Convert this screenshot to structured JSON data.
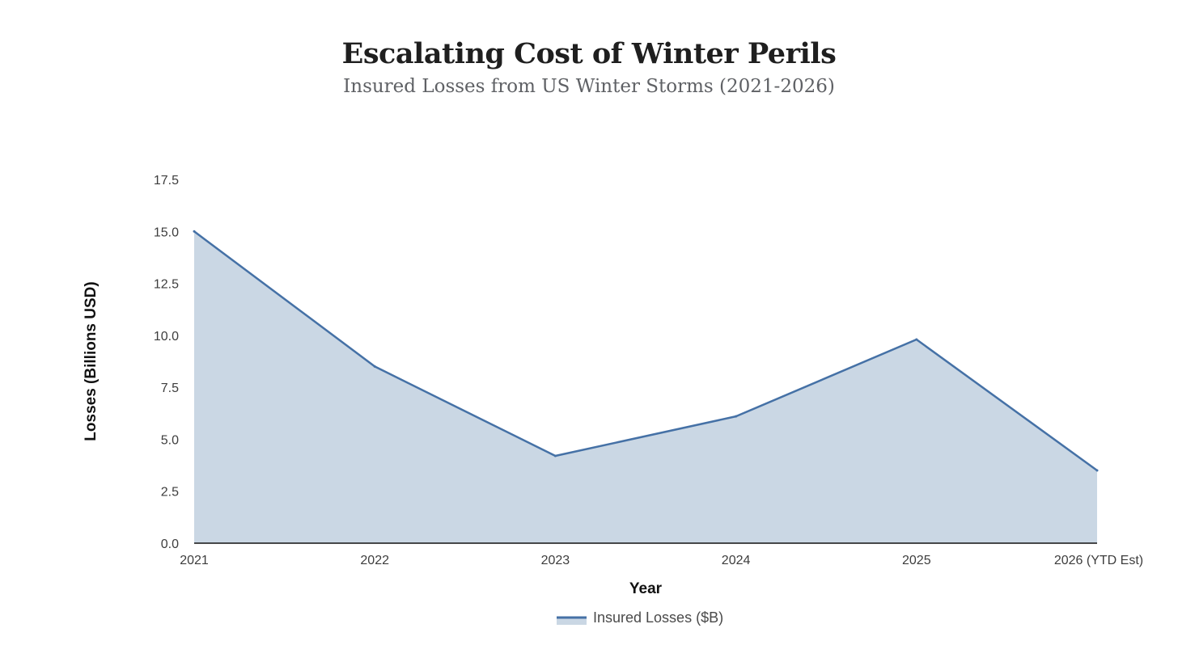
{
  "chart_data": {
    "type": "area",
    "title": "Escalating Cost of Winter Perils",
    "subtitle": "Insured Losses from US Winter Storms (2021-2026)",
    "xlabel": "Year",
    "ylabel": "Losses (Billions USD)",
    "categories": [
      "2021",
      "2022",
      "2023",
      "2024",
      "2025",
      "2026 (YTD Est)"
    ],
    "series": [
      {
        "name": "Insured Losses ($B)",
        "values": [
          15.0,
          8.5,
          4.2,
          6.1,
          9.8,
          3.5
        ]
      }
    ],
    "ylim": [
      0,
      17.5
    ],
    "yticks": [
      "0.0",
      "2.5",
      "5.0",
      "7.5",
      "10.0",
      "12.5",
      "15.0",
      "17.5"
    ],
    "grid": false,
    "legend_position": "bottom-center",
    "colors": {
      "line": "#4571a6",
      "fill": "#cad7e4"
    }
  }
}
